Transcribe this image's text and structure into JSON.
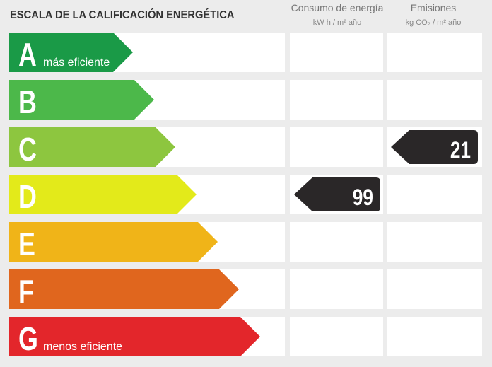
{
  "header": {
    "title": "ESCALA DE LA CALIFICACIÓN ENERGÉTICA",
    "consumption": {
      "title": "Consumo de energía",
      "unit": "kW h / m² año"
    },
    "emissions": {
      "title": "Emisiones",
      "unit": "kg CO₂ / m² año"
    }
  },
  "rows": [
    {
      "letter": "A",
      "note": "más eficiente",
      "color": "#1a9a47"
    },
    {
      "letter": "B",
      "color": "#4cb84a"
    },
    {
      "letter": "C",
      "color": "#8dc63f",
      "emissions": 21
    },
    {
      "letter": "D",
      "color": "#e3ea1a",
      "consumption": 99
    },
    {
      "letter": "E",
      "color": "#f0b418"
    },
    {
      "letter": "F",
      "color": "#e0661e"
    },
    {
      "letter": "G",
      "note": "menos eficiente",
      "color": "#e3262b"
    }
  ]
}
